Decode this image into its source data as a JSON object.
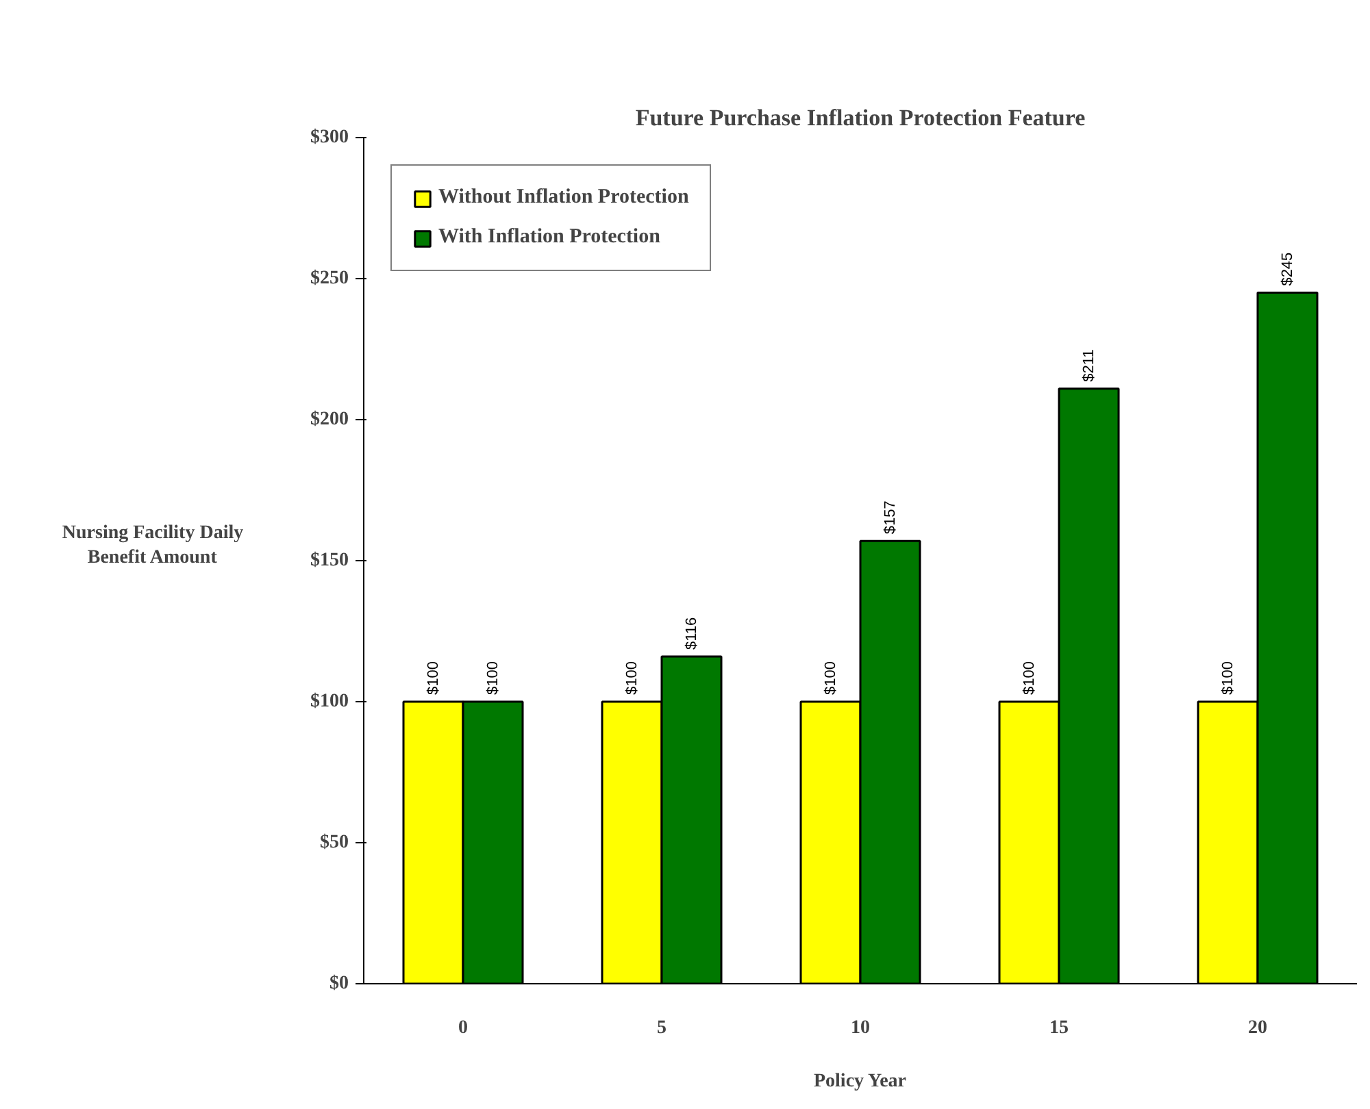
{
  "chart_data": {
    "type": "bar",
    "title": "Future Purchase Inflation Protection Feature",
    "xlabel": "Policy Year",
    "ylabel": "Nursing Facility Daily\nBenefit Amount",
    "categories": [
      "0",
      "5",
      "10",
      "15",
      "20"
    ],
    "series": [
      {
        "name": "Without Inflation Protection",
        "color": "#ffff00",
        "values": [
          100,
          100,
          100,
          100,
          100
        ],
        "value_labels": [
          "$100",
          "$100",
          "$100",
          "$100",
          "$100"
        ]
      },
      {
        "name": "With Inflation Protection",
        "color": "#007800",
        "values": [
          100,
          116,
          157,
          211,
          245
        ],
        "value_labels": [
          "$100",
          "$116",
          "$157",
          "$211",
          "$245"
        ]
      }
    ],
    "ylim": [
      0,
      300
    ],
    "yticks": [
      {
        "value": 0,
        "label": "$0"
      },
      {
        "value": 50,
        "label": "$50"
      },
      {
        "value": 100,
        "label": "$100"
      },
      {
        "value": 150,
        "label": "$150"
      },
      {
        "value": 200,
        "label": "$200"
      },
      {
        "value": 250,
        "label": "$250"
      },
      {
        "value": 300,
        "label": "$300"
      }
    ],
    "grid": false,
    "legend": "top left"
  }
}
